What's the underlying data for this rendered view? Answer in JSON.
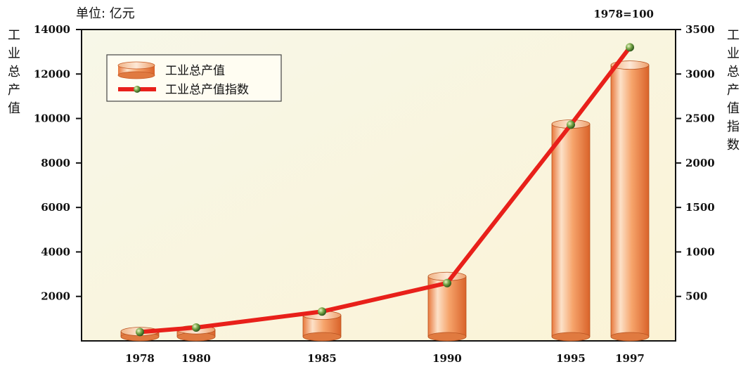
{
  "chart_data": {
    "type": "bar",
    "unit_label": "单位: 亿元",
    "base_note": "1978=100",
    "categories": [
      "1978",
      "1980",
      "1985",
      "1990",
      "1995",
      "1997"
    ],
    "series": [
      {
        "name": "工业总产值",
        "type": "bar",
        "axis": "left",
        "values": [
          423,
          500,
          1150,
          2900,
          9750,
          12400
        ]
      },
      {
        "name": "工业总产值指数",
        "type": "line",
        "axis": "right",
        "values": [
          100,
          150,
          330,
          650,
          2430,
          3300
        ]
      }
    ],
    "ylabel_left": "工业总产值",
    "ylabel_right": "工业总产值指数",
    "ylim_left": [
      0,
      14000
    ],
    "yticks_left": [
      "2000",
      "4000",
      "6000",
      "8000",
      "10000",
      "12000",
      "14000"
    ],
    "ylim_right": [
      0,
      3500
    ],
    "yticks_right": [
      "500",
      "1000",
      "1500",
      "2000",
      "2500",
      "3000",
      "3500"
    ],
    "legend_position": "top-left",
    "colors": {
      "bar": "#f4a56f",
      "line": "#e8201a",
      "marker": "#7aa84a"
    }
  }
}
